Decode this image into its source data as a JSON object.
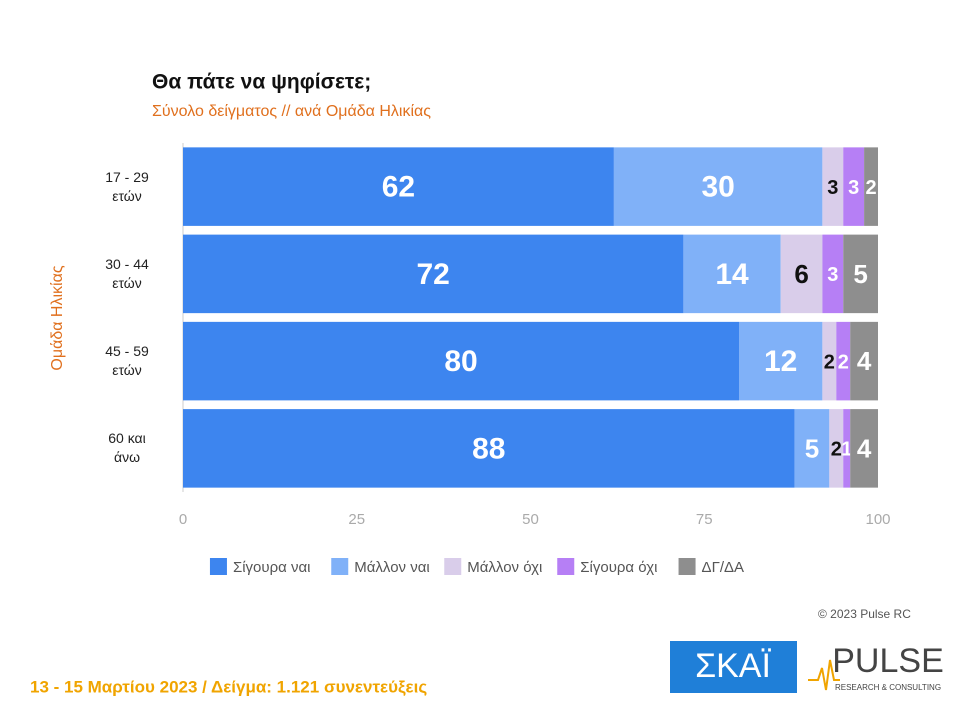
{
  "chart_data": {
    "type": "stacked-barh",
    "title": "Θα πάτε να ψηφίσετε;",
    "subtitle": "Σύνολο δείγματος // ανά Ομάδα Ηλικίας",
    "y_label": "Ομάδα Ηλικίας",
    "categories": [
      "17 - 29 ετών",
      "30 - 44 ετών",
      "45 - 59 ετών",
      "60 και άνω"
    ],
    "series": [
      {
        "name": "Σίγουρα ναι",
        "color": "#3d85ef",
        "values": [
          62,
          72,
          80,
          88
        ]
      },
      {
        "name": "Μάλλον ναι",
        "color": "#80b1f8",
        "values": [
          30,
          14,
          12,
          5
        ]
      },
      {
        "name": "Μάλλον όχι",
        "color": "#d9cdea",
        "values": [
          3,
          6,
          2,
          2
        ]
      },
      {
        "name": "Σίγουρα όχι",
        "color": "#b67ff5",
        "values": [
          3,
          3,
          2,
          1
        ]
      },
      {
        "name": "ΔΓ/ΔΑ",
        "color": "#8e8e8e",
        "values": [
          2,
          5,
          4,
          4
        ]
      }
    ],
    "xlim": [
      0,
      100
    ],
    "xticks": [
      0,
      25,
      50,
      75,
      100
    ],
    "grid": false,
    "legend": "bottom"
  },
  "copyright": "© 2023 Pulse RC",
  "footer": "13 - 15 Μαρτίου 2023 / Δείγμα: 1.121 συνεντεύξεις",
  "logos": {
    "skai": "ΣΚΑΪ",
    "pulse": "PULSE",
    "pulse_tagline": "RESEARCH & CONSULTING"
  }
}
